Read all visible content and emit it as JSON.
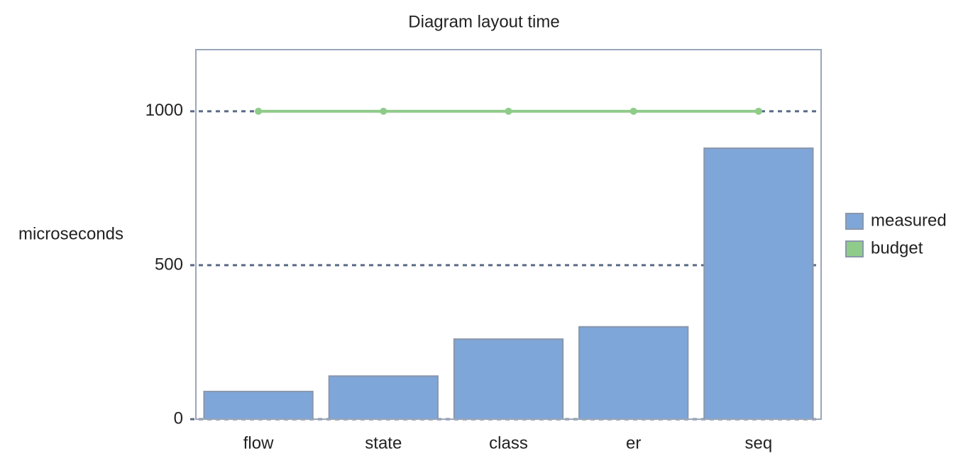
{
  "chart_data": {
    "type": "bar",
    "title": "Diagram layout time",
    "ylabel": "microseconds",
    "categories": [
      "flow",
      "state",
      "class",
      "er",
      "seq"
    ],
    "series": [
      {
        "name": "measured",
        "type": "bar",
        "color": "#7fa6d9",
        "values": [
          90,
          140,
          260,
          300,
          880
        ]
      },
      {
        "name": "budget",
        "type": "line",
        "color": "#8fcc8a",
        "values": [
          1000,
          1000,
          1000,
          1000,
          1000
        ]
      }
    ],
    "ylim": [
      0,
      1200
    ],
    "yticks": [
      0,
      500,
      1000
    ],
    "grid": true,
    "legend": "right"
  }
}
